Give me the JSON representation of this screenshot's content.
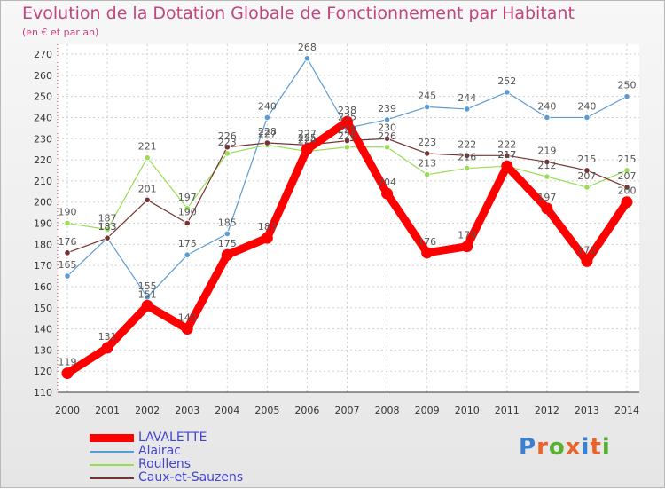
{
  "title": "Evolution de la Dotation Globale de Fonctionnement par Habitant",
  "subtitle": "(en € et par an)",
  "brand": {
    "text": "Proxiti"
  },
  "chart_data": {
    "type": "line",
    "title": "Evolution de la Dotation Globale de Fonctionnement par Habitant",
    "subtitle": "(en € et par an)",
    "x": [
      "2000",
      "2001",
      "2002",
      "2003",
      "2004",
      "2005",
      "2006",
      "2007",
      "2008",
      "2009",
      "2010",
      "2011",
      "2012",
      "2013",
      "2014"
    ],
    "ylim": [
      110,
      270
    ],
    "yticks": [
      110,
      120,
      130,
      140,
      150,
      160,
      170,
      180,
      190,
      200,
      210,
      220,
      230,
      240,
      250,
      260,
      270
    ],
    "grid": true,
    "legend_position": "bottom-left",
    "series": [
      {
        "name": "LAVALETTE",
        "color": "#ff0000",
        "values": [
          119,
          131,
          151,
          140,
          175,
          183,
          225,
          238,
          204,
          176,
          179,
          217,
          197,
          172,
          200
        ]
      },
      {
        "name": "Alairac",
        "color": "#5a9bd4",
        "values": [
          165,
          183,
          155,
          175,
          185,
          240,
          268,
          235,
          239,
          245,
          244,
          252,
          240,
          240,
          250
        ]
      },
      {
        "name": "Roullens",
        "color": "#99dd55",
        "values": [
          190,
          187,
          221,
          197,
          223,
          227,
          224,
          226,
          226,
          213,
          216,
          217,
          212,
          207,
          215
        ]
      },
      {
        "name": "Caux-et-Sauzens",
        "color": "#773333",
        "values": [
          176,
          183,
          201,
          190,
          226,
          228,
          227,
          229,
          230,
          223,
          222,
          222,
          219,
          215,
          207
        ]
      }
    ]
  }
}
